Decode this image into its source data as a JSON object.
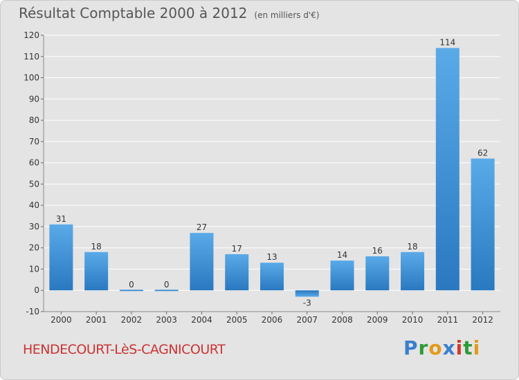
{
  "title": "Résultat Comptable 2000 à 2012",
  "unit_label": "(en milliers d'€)",
  "town": "HENDECOURT-LèS-CAGNICOURT",
  "logo": {
    "text": "Proxiti",
    "letters": [
      {
        "ch": "P",
        "color": "#3a7fcf"
      },
      {
        "ch": "r",
        "color": "#2f9a3a"
      },
      {
        "ch": "o",
        "color": "#e39a1a"
      },
      {
        "ch": "x",
        "color": "#3a7fcf"
      },
      {
        "ch": "i",
        "color": "#d23a2a"
      },
      {
        "ch": "t",
        "color": "#2f9a3a"
      },
      {
        "ch": "i",
        "color": "#e39a1a"
      }
    ]
  },
  "colors": {
    "bar_top": "#5aaae8",
    "bar_bottom": "#2a78c0",
    "grid": "#ffffff",
    "axis_text": "#333333",
    "title": "#555555",
    "town": "#cc3333"
  },
  "chart_data": {
    "type": "bar",
    "title": "Résultat Comptable 2000 à 2012",
    "subtitle": "(en milliers d'€)",
    "xlabel": "",
    "ylabel": "",
    "categories": [
      "2000",
      "2001",
      "2002",
      "2003",
      "2004",
      "2005",
      "2006",
      "2007",
      "2008",
      "2009",
      "2010",
      "2011",
      "2012"
    ],
    "values": [
      31,
      18,
      0,
      0,
      27,
      17,
      13,
      -3,
      14,
      16,
      18,
      114,
      62
    ],
    "data_labels": [
      "31",
      "18",
      "0",
      "0",
      "27",
      "17",
      "13",
      "-3",
      "14",
      "16",
      "18",
      "114",
      "62"
    ],
    "ylim": [
      -10,
      120
    ],
    "yticks": [
      -10,
      0,
      10,
      20,
      30,
      40,
      50,
      60,
      70,
      80,
      90,
      100,
      110,
      120
    ],
    "grid": true,
    "legend": "none"
  }
}
